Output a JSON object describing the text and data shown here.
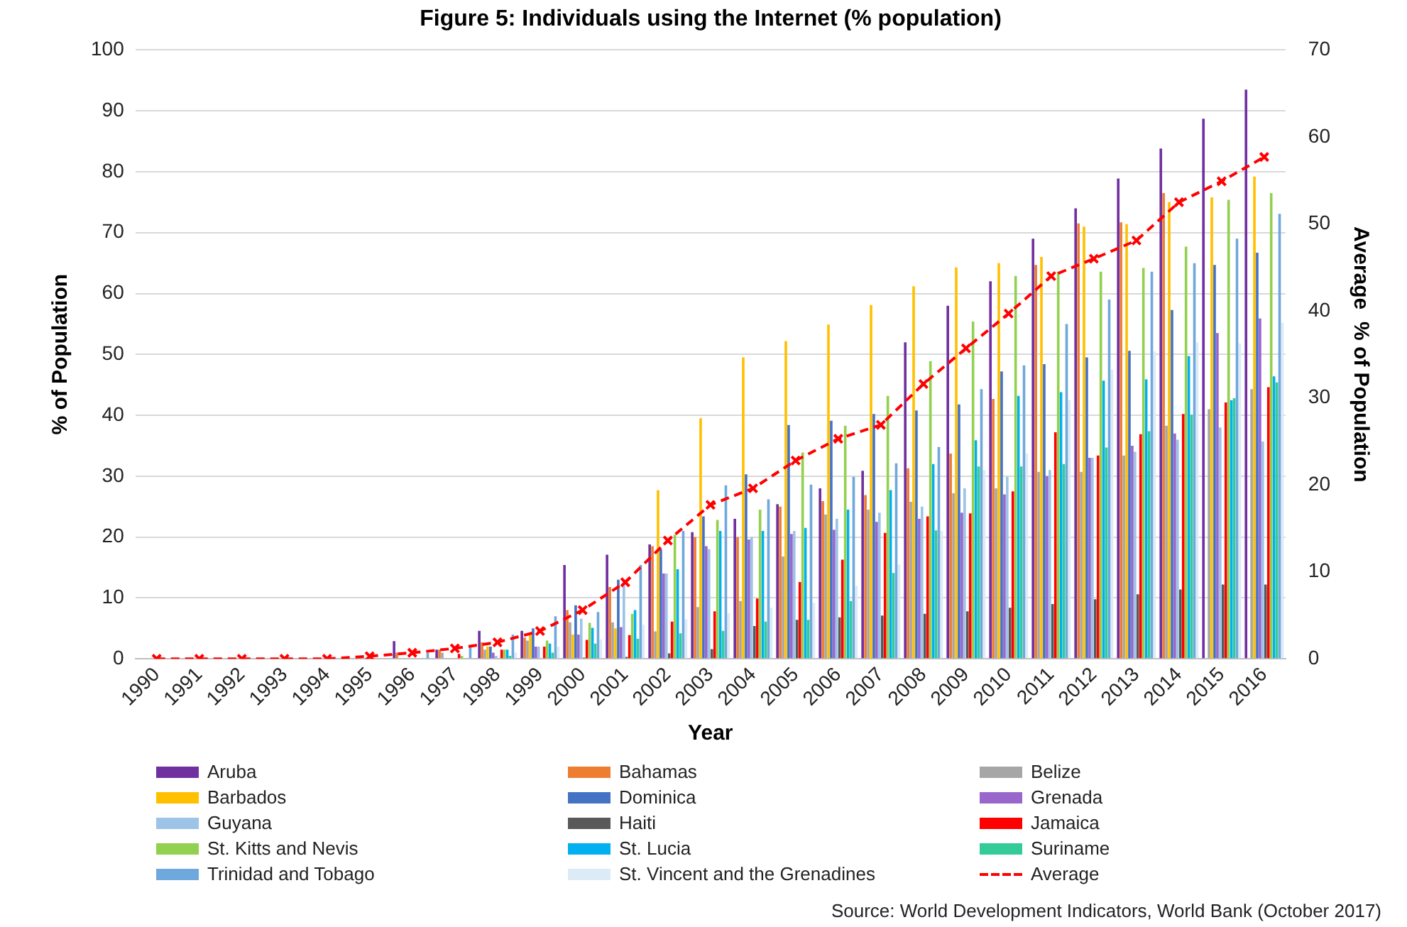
{
  "chart_data": {
    "type": "bar",
    "title": "Figure 5: Individuals using the Internet (% population)",
    "xlabel": "Year",
    "ylabel": "% of Population",
    "y2label": "Average  % of Population",
    "categories": [
      "1990",
      "1991",
      "1992",
      "1993",
      "1994",
      "1995",
      "1996",
      "1997",
      "1998",
      "1999",
      "2000",
      "2001",
      "2002",
      "2003",
      "2004",
      "2005",
      "2006",
      "2007",
      "2008",
      "2009",
      "2010",
      "2011",
      "2012",
      "2013",
      "2014",
      "2015",
      "2016"
    ],
    "series": [
      {
        "name": "Aruba",
        "color": "#7030a0",
        "values": [
          0,
          0,
          0,
          0,
          0,
          0,
          2.9,
          1.5,
          4.6,
          4.6,
          15.4,
          17.1,
          18.8,
          20.8,
          23,
          25.4,
          28,
          30.9,
          52,
          58,
          62,
          69,
          74,
          78.9,
          83.8,
          88.7,
          93.5
        ]
      },
      {
        "name": "Bahamas",
        "color": "#ed7d31",
        "values": [
          0,
          0,
          0,
          0,
          0,
          0.1,
          1,
          1.5,
          2.7,
          3.5,
          8,
          11.8,
          18.5,
          20,
          20,
          25,
          25.9,
          26.9,
          31.3,
          33.7,
          42.7,
          64.7,
          71.5,
          71.7,
          76.5,
          null,
          null
        ]
      },
      {
        "name": "Belize",
        "color": "#a6a6a6",
        "values": [
          0,
          0,
          0,
          0,
          0,
          0,
          null,
          1,
          1.5,
          3,
          6,
          6,
          4.5,
          8.5,
          9.5,
          16.8,
          23.7,
          24.5,
          25.8,
          27.2,
          28,
          30.7,
          30.7,
          33.4,
          38.3,
          41,
          44.3
        ]
      },
      {
        "name": "Barbados",
        "color": "#ffc000",
        "values": [
          0,
          0,
          0,
          0,
          0,
          0,
          0,
          0,
          2,
          4,
          4,
          5,
          27.7,
          39.5,
          49.5,
          52.2,
          54.9,
          58.1,
          61.2,
          64.3,
          65,
          66,
          71,
          71.4,
          75,
          75.8,
          79.2
        ]
      },
      {
        "name": "Dominica",
        "color": "#4472c4",
        "values": [
          0,
          0,
          0,
          0,
          0,
          0,
          0,
          0,
          2,
          5,
          8.8,
          13,
          18,
          23.4,
          30.3,
          38.4,
          39.1,
          40.2,
          40.8,
          41.8,
          47.2,
          48.4,
          49.5,
          50.6,
          57.3,
          64.7,
          66.7
        ]
      },
      {
        "name": "Grenada",
        "color": "#9966cc",
        "values": [
          0,
          0,
          0,
          0,
          0,
          0,
          0,
          0,
          1,
          2,
          4,
          5.2,
          14,
          18.5,
          19.6,
          20.5,
          21.2,
          22.5,
          23,
          24,
          27,
          30,
          33,
          35,
          37,
          53.5,
          55.9
        ]
      },
      {
        "name": "Guyana",
        "color": "#9dc3e6",
        "values": [
          0,
          0,
          0,
          0,
          0,
          0,
          0,
          0,
          0.5,
          2,
          6.6,
          13,
          14,
          18,
          20,
          21,
          23,
          24,
          25,
          28,
          29.9,
          31,
          33,
          34,
          36,
          38,
          35.7
        ]
      },
      {
        "name": "Haiti",
        "color": "#595959",
        "values": [
          0,
          0,
          0,
          0,
          0,
          0,
          0,
          0,
          0,
          0,
          0.2,
          0.3,
          0.9,
          1.6,
          5.4,
          6.4,
          6.8,
          7.1,
          7.4,
          7.8,
          8.4,
          9,
          9.8,
          10.6,
          11.4,
          12.2,
          12.2
        ]
      },
      {
        "name": "Jamaica",
        "color": "#ff0000",
        "values": [
          0,
          0,
          0,
          0,
          0,
          0,
          null,
          0.8,
          1.5,
          2,
          3.1,
          3.9,
          6.1,
          7.8,
          9.9,
          12.6,
          16.3,
          20.7,
          23.4,
          23.9,
          27.5,
          37.2,
          33.4,
          36.9,
          40.2,
          42.1,
          44.6
        ]
      },
      {
        "name": "St. Kitts and Nevis",
        "color": "#92d050",
        "values": [
          0,
          0,
          0,
          0,
          0,
          0,
          0,
          0.5,
          1.5,
          3,
          5.9,
          7.4,
          20.4,
          22.8,
          24.5,
          33.9,
          38.3,
          43.2,
          48.9,
          55.4,
          62.9,
          63.6,
          63.6,
          64.2,
          67.7,
          75.4,
          76.5
        ]
      },
      {
        "name": "St. Lucia",
        "color": "#00b0f0",
        "values": [
          0,
          0,
          0,
          0,
          0,
          0,
          0,
          null,
          1.5,
          2.5,
          5.1,
          8,
          14.7,
          21,
          21,
          21.5,
          24.5,
          27.7,
          32,
          35.9,
          43.2,
          43.8,
          45.7,
          45.9,
          49.7,
          42.5,
          46.4
        ]
      },
      {
        "name": "Suriname",
        "color": "#33cc99",
        "values": [
          0,
          0,
          0,
          0,
          0,
          0,
          0,
          0,
          0.5,
          1,
          2.5,
          3.3,
          4.2,
          4.6,
          6.1,
          6.4,
          9.5,
          14.1,
          21.1,
          31.6,
          31.6,
          32,
          34.7,
          37.4,
          40.1,
          42.8,
          45.4
        ]
      },
      {
        "name": "Trinidad and Tobago",
        "color": "#6fa8dc",
        "values": [
          0,
          0,
          0,
          0,
          0,
          null,
          1,
          2,
          4,
          7,
          7.7,
          15.4,
          21,
          28.5,
          26.2,
          28.6,
          29.9,
          32.1,
          34.8,
          44.3,
          48.2,
          55,
          59,
          63.6,
          65,
          69,
          73.1
        ]
      },
      {
        "name": "St. Vincent and the Grenadines",
        "color": "#ddebf7",
        "values": [
          0,
          0,
          0,
          0,
          0,
          0,
          0,
          null,
          1,
          2,
          3.2,
          5.6,
          6.5,
          7.5,
          8.4,
          9.2,
          12,
          15.5,
          21,
          31,
          33.7,
          42.5,
          47.5,
          50.5,
          52,
          51.8,
          55.2
        ]
      },
      {
        "name": "Average",
        "type": "line",
        "axis": "y2",
        "color": "#ff0000",
        "line_style": "dashed",
        "marker": "cross",
        "values": [
          0,
          0,
          0,
          0,
          0,
          0.3,
          0.7,
          1.2,
          1.9,
          3.2,
          5.6,
          8.8,
          13.6,
          17.7,
          19.6,
          22.8,
          25.3,
          26.9,
          31.6,
          35.7,
          39.7,
          44,
          46,
          48.1,
          52.5,
          54.9,
          57.7
        ]
      }
    ],
    "ylim": [
      0,
      100
    ],
    "yticks": [
      0,
      10,
      20,
      30,
      40,
      50,
      60,
      70,
      80,
      90,
      100
    ],
    "y2lim": [
      0,
      70
    ],
    "y2ticks": [
      0,
      10,
      20,
      30,
      40,
      50,
      60,
      70
    ],
    "grid": "y",
    "legend": "bottom",
    "annotations": [
      "Source: World Development Indicators, World Bank (October 2017)"
    ]
  }
}
